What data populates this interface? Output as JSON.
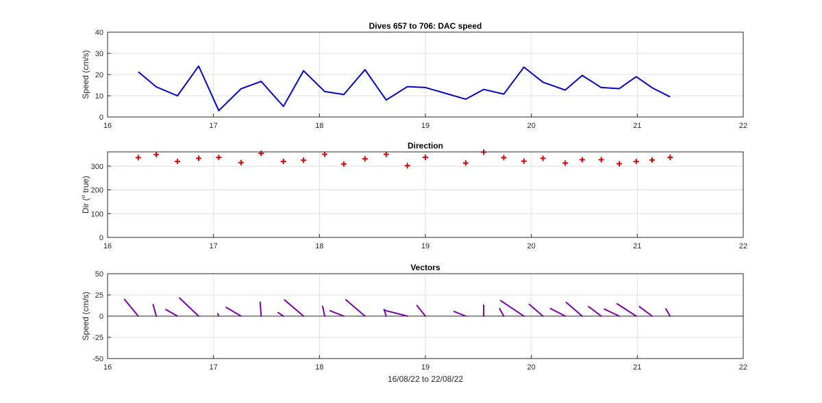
{
  "chart_data": [
    {
      "type": "line",
      "title": "Dives 657 to 706: DAC speed",
      "xlabel": "",
      "ylabel": "Speed (cm/s)",
      "xlim": [
        16,
        22
      ],
      "ylim": [
        0,
        40
      ],
      "x_ticks": [
        "16",
        "17",
        "18",
        "19",
        "20",
        "21",
        "22"
      ],
      "y_ticks": [
        "0",
        "10",
        "20",
        "30",
        "40"
      ],
      "grid": true,
      "color": "#0000cc",
      "x": [
        16.29,
        16.46,
        16.66,
        16.86,
        17.05,
        17.26,
        17.45,
        17.66,
        17.85,
        18.05,
        18.23,
        18.43,
        18.63,
        18.83,
        19.0,
        19.38,
        19.55,
        19.74,
        19.93,
        20.11,
        20.32,
        20.48,
        20.66,
        20.83,
        20.99,
        21.14,
        21.31
      ],
      "y": [
        21.3,
        14.2,
        10.0,
        24.0,
        3.0,
        13.3,
        16.8,
        5.0,
        21.8,
        12.0,
        10.6,
        22.3,
        8.0,
        14.3,
        13.9,
        8.4,
        13.0,
        10.8,
        23.5,
        16.4,
        12.7,
        19.6,
        13.9,
        13.4,
        19.0,
        13.8,
        9.5
      ]
    },
    {
      "type": "scatter",
      "title": "Direction",
      "xlabel": "",
      "ylabel": "Dir (°true)",
      "ylabel_parts": [
        "Dir (",
        "o",
        " true)"
      ],
      "xlim": [
        16,
        22
      ],
      "ylim": [
        0,
        360
      ],
      "x_ticks": [
        "16",
        "17",
        "18",
        "19",
        "20",
        "21",
        "22"
      ],
      "y_ticks": [
        "0",
        "100",
        "200",
        "300"
      ],
      "grid": true,
      "marker": "+",
      "color": "#e00000",
      "x": [
        16.29,
        16.46,
        16.66,
        16.86,
        17.05,
        17.26,
        17.45,
        17.66,
        17.85,
        18.05,
        18.23,
        18.43,
        18.63,
        18.83,
        19.0,
        19.38,
        19.55,
        19.74,
        19.93,
        20.11,
        20.32,
        20.48,
        20.66,
        20.83,
        20.99,
        21.14,
        21.31
      ],
      "y": [
        336,
        349,
        320,
        333,
        337,
        315,
        354,
        320,
        325,
        350,
        309,
        331,
        350,
        302,
        337,
        313,
        359,
        336,
        321,
        333,
        313,
        327,
        327,
        310,
        320,
        326,
        337
      ]
    },
    {
      "type": "vector",
      "title": "Vectors",
      "xlabel": "16/08/22 to 22/08/22",
      "ylabel": "Speed (cm/s)",
      "xlim": [
        16,
        22
      ],
      "ylim": [
        -50,
        50
      ],
      "x_ticks": [
        "16",
        "17",
        "18",
        "19",
        "20",
        "21",
        "22"
      ],
      "y_ticks": [
        "-50",
        "-25",
        "0",
        "25",
        "50"
      ],
      "grid": true,
      "zero_line": true,
      "color": "#7a00a8",
      "vectors": [
        {
          "x": 16.29,
          "dx": -0.13,
          "v": 19.7
        },
        {
          "x": 16.46,
          "dx": -0.03,
          "v": 13.6
        },
        {
          "x": 16.66,
          "dx": -0.11,
          "v": 7.8
        },
        {
          "x": 16.86,
          "dx": -0.18,
          "v": 21.3
        },
        {
          "x": 17.05,
          "dx": -0.01,
          "v": 2.9
        },
        {
          "x": 17.26,
          "dx": -0.14,
          "v": 10.3
        },
        {
          "x": 17.45,
          "dx": -0.01,
          "v": 16.5
        },
        {
          "x": 17.66,
          "dx": -0.05,
          "v": 4.2
        },
        {
          "x": 17.85,
          "dx": -0.18,
          "v": 19.1
        },
        {
          "x": 18.05,
          "dx": -0.02,
          "v": 11.5
        },
        {
          "x": 18.23,
          "dx": -0.13,
          "v": 6.3
        },
        {
          "x": 18.43,
          "dx": -0.18,
          "v": 19.2
        },
        {
          "x": 18.63,
          "dx": -0.02,
          "v": 8.0
        },
        {
          "x": 18.83,
          "dx": -0.22,
          "v": 7.0
        },
        {
          "x": 19.0,
          "dx": -0.08,
          "v": 12.5
        },
        {
          "x": 19.38,
          "dx": -0.11,
          "v": 5.5
        },
        {
          "x": 19.55,
          "dx": -0.0,
          "v": 12.9
        },
        {
          "x": 19.74,
          "dx": -0.04,
          "v": 8.8
        },
        {
          "x": 19.93,
          "dx": -0.22,
          "v": 18.3
        },
        {
          "x": 20.11,
          "dx": -0.13,
          "v": 13.9
        },
        {
          "x": 20.32,
          "dx": -0.14,
          "v": 9.0
        },
        {
          "x": 20.48,
          "dx": -0.15,
          "v": 16.1
        },
        {
          "x": 20.66,
          "dx": -0.12,
          "v": 11.2
        },
        {
          "x": 20.83,
          "dx": -0.14,
          "v": 8.2
        },
        {
          "x": 20.99,
          "dx": -0.18,
          "v": 14.5
        },
        {
          "x": 21.14,
          "dx": -0.12,
          "v": 11.1
        },
        {
          "x": 21.31,
          "dx": -0.04,
          "v": 8.5
        }
      ]
    }
  ]
}
